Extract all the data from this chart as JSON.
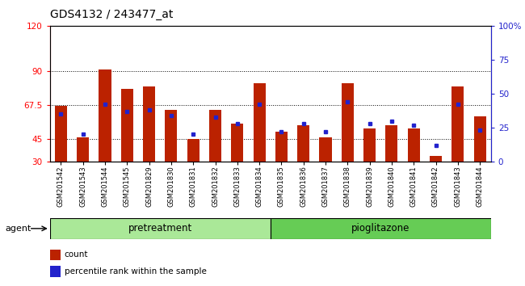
{
  "title": "GDS4132 / 243477_at",
  "samples": [
    "GSM201542",
    "GSM201543",
    "GSM201544",
    "GSM201545",
    "GSM201829",
    "GSM201830",
    "GSM201831",
    "GSM201832",
    "GSM201833",
    "GSM201834",
    "GSM201835",
    "GSM201836",
    "GSM201837",
    "GSM201838",
    "GSM201839",
    "GSM201840",
    "GSM201841",
    "GSM201842",
    "GSM201843",
    "GSM201844"
  ],
  "bar_tops": [
    67,
    46,
    91,
    78,
    80,
    64,
    45,
    64,
    55,
    82,
    50,
    54,
    46,
    82,
    52,
    54,
    52,
    34,
    80,
    60
  ],
  "blue_pct": [
    35,
    20,
    42,
    37,
    38,
    34,
    20,
    33,
    28,
    42,
    22,
    28,
    22,
    44,
    28,
    30,
    27,
    12,
    42,
    23
  ],
  "pretreatment_count": 10,
  "ylim_left": [
    30,
    120
  ],
  "ylim_right": [
    0,
    100
  ],
  "yticks_left": [
    30,
    45,
    67.5,
    90,
    120
  ],
  "ytick_labels_left": [
    "30",
    "45",
    "67.5",
    "90",
    "120"
  ],
  "yticks_right": [
    0,
    25,
    50,
    75,
    100
  ],
  "ytick_labels_right": [
    "0",
    "25",
    "50",
    "75",
    "100%"
  ],
  "hlines": [
    45,
    67.5,
    90
  ],
  "bar_color": "#bb2200",
  "blue_color": "#2222cc",
  "pretreatment_color": "#aae898",
  "pioglitazone_color": "#66cc55",
  "agent_label": "agent",
  "pretreatment_label": "pretreatment",
  "pioglitazone_label": "pioglitazone",
  "legend_count": "count",
  "legend_percentile": "percentile rank within the sample",
  "title_fontsize": 10,
  "bar_width": 0.55,
  "tick_bg_color": "#d0d0d0"
}
